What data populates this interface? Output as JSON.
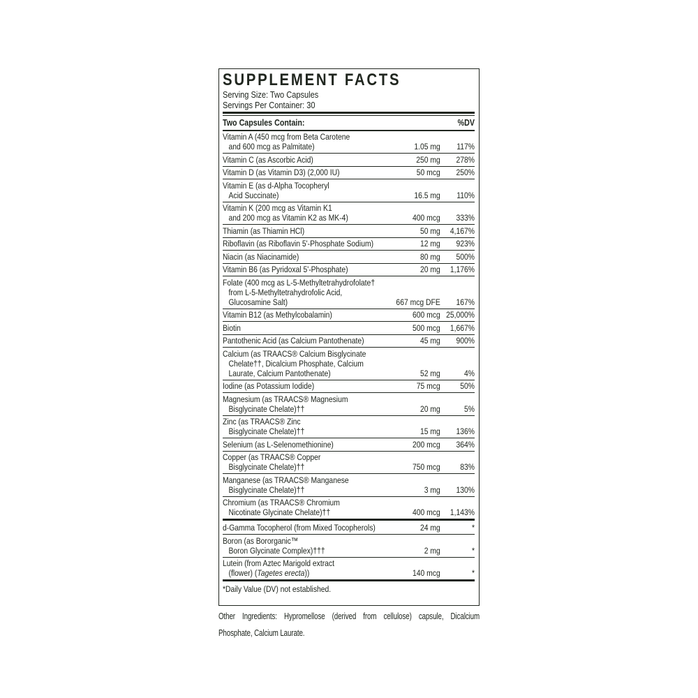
{
  "colors": {
    "ink": "#20261f",
    "background": "#ffffff"
  },
  "label": {
    "title": "SUPPLEMENT FACTS",
    "serving_size": "Serving Size: Two Capsules",
    "servings_per_container": "Servings Per Container: 30",
    "column_header": {
      "left": "Two Capsules Contain:",
      "right": "%DV"
    },
    "rows": [
      {
        "name_lines": [
          "Vitamin A (450 mcg from Beta Carotene",
          "and 600 mcg as Palmitate)"
        ],
        "amount": "1.05 mg",
        "dv": "117%"
      },
      {
        "name_lines": [
          "Vitamin C (as Ascorbic Acid)"
        ],
        "amount": "250 mg",
        "dv": "278%"
      },
      {
        "name_lines": [
          "Vitamin D (as Vitamin D3) (2,000 IU)"
        ],
        "amount": "50 mcg",
        "dv": "250%"
      },
      {
        "name_lines": [
          "Vitamin E (as d-Alpha Tocopheryl",
          "Acid Succinate)"
        ],
        "amount": "16.5 mg",
        "dv": "110%"
      },
      {
        "name_lines": [
          "Vitamin K (200 mcg as Vitamin K1",
          "and 200 mcg as Vitamin K2 as MK-4)"
        ],
        "amount": "400 mcg",
        "dv": "333%"
      },
      {
        "name_lines": [
          "Thiamin (as Thiamin HCl)"
        ],
        "amount": "50 mg",
        "dv": "4,167%"
      },
      {
        "name_lines": [
          "Riboflavin (as Riboflavin 5'-Phosphate Sodium)"
        ],
        "amount": "12 mg",
        "dv": "923%"
      },
      {
        "name_lines": [
          "Niacin (as Niacinamide)"
        ],
        "amount": "80 mg",
        "dv": "500%"
      },
      {
        "name_lines": [
          "Vitamin B6 (as Pyridoxal 5'-Phosphate)"
        ],
        "amount": "20 mg",
        "dv": "1,176%"
      },
      {
        "name_lines": [
          "Folate (400 mcg as L-5-Methyltetrahydrofolate†",
          "from L-5-Methyltetrahydrofolic Acid,",
          "Glucosamine Salt)"
        ],
        "amount": "667 mcg DFE",
        "dv": "167%"
      },
      {
        "name_lines": [
          "Vitamin B12 (as Methylcobalamin)"
        ],
        "amount": "600 mcg",
        "dv": "25,000%"
      },
      {
        "name_lines": [
          "Biotin"
        ],
        "amount": "500 mcg",
        "dv": "1,667%"
      },
      {
        "name_lines": [
          "Pantothenic Acid (as Calcium Pantothenate)"
        ],
        "amount": "45 mg",
        "dv": "900%"
      },
      {
        "name_lines": [
          "Calcium (as TRAACS® Calcium Bisglycinate",
          "Chelate††, Dicalcium Phosphate, Calcium",
          "Laurate, Calcium Pantothenate)"
        ],
        "amount": "52 mg",
        "dv": "4%"
      },
      {
        "name_lines": [
          "Iodine (as Potassium Iodide)"
        ],
        "amount": "75 mcg",
        "dv": "50%"
      },
      {
        "name_lines": [
          "Magnesium (as TRAACS® Magnesium",
          "Bisglycinate Chelate)††"
        ],
        "amount": "20 mg",
        "dv": "5%"
      },
      {
        "name_lines": [
          "Zinc (as TRAACS® Zinc",
          "Bisglycinate Chelate)††"
        ],
        "amount": "15 mg",
        "dv": "136%"
      },
      {
        "name_lines": [
          "Selenium (as L-Selenomethionine)"
        ],
        "amount": "200 mcg",
        "dv": "364%"
      },
      {
        "name_lines": [
          "Copper (as TRAACS® Copper",
          "Bisglycinate Chelate)††"
        ],
        "amount": "750 mcg",
        "dv": "83%"
      },
      {
        "name_lines": [
          "Manganese (as TRAACS® Manganese",
          "Bisglycinate Chelate)††"
        ],
        "amount": "3 mg",
        "dv": "130%"
      },
      {
        "name_lines": [
          "Chromium (as TRAACS® Chromium",
          "Nicotinate Glycinate Chelate)††"
        ],
        "amount": "400 mcg",
        "dv": "1,143%"
      },
      {
        "section_break_before": true,
        "name_lines": [
          "d-Gamma Tocopherol (from Mixed Tocopherols)"
        ],
        "amount": "24 mg",
        "dv": "*"
      },
      {
        "name_lines": [
          "Boron (as Bororganic™",
          "Boron Glycinate Complex)†††"
        ],
        "amount": "2 mg",
        "dv": "*"
      },
      {
        "name_lines": [
          "Lutein (from Aztec Marigold extract",
          "(flower) (Tagetes erecta))"
        ],
        "italic_phrase": "Tagetes erecta",
        "amount": "140 mcg",
        "dv": "*"
      }
    ],
    "footnote": "*Daily Value (DV) not established."
  },
  "other_ingredients": {
    "line1": "Other Ingredients: Hypromellose (derived from cellulose) capsule, Dicalcium",
    "line2": "Phosphate, Calcium Laurate."
  }
}
